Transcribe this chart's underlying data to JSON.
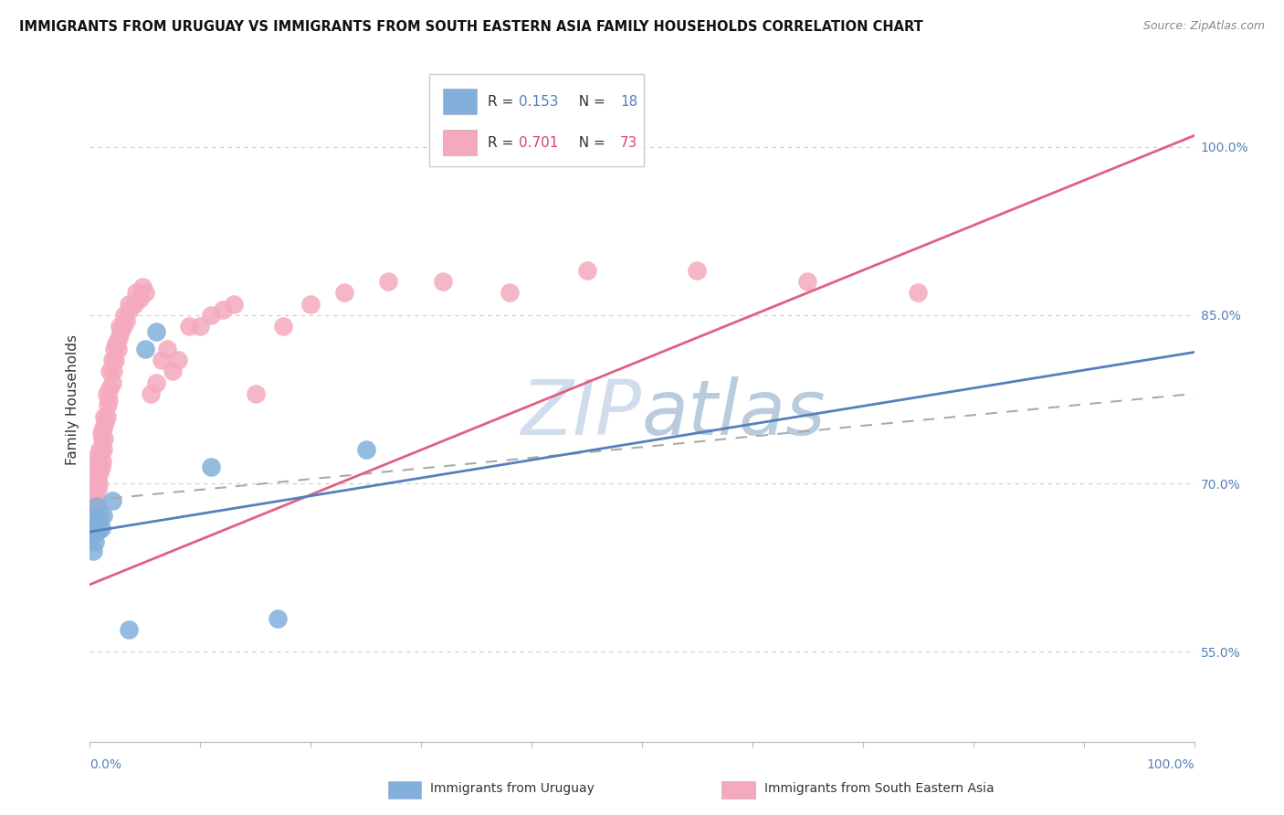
{
  "title": "IMMIGRANTS FROM URUGUAY VS IMMIGRANTS FROM SOUTH EASTERN ASIA FAMILY HOUSEHOLDS CORRELATION CHART",
  "source": "Source: ZipAtlas.com",
  "ylabel": "Family Households",
  "right_ytick_labels": [
    "55.0%",
    "70.0%",
    "85.0%",
    "100.0%"
  ],
  "right_ytick_values": [
    0.55,
    0.7,
    0.85,
    1.0
  ],
  "legend_blue_r": "0.153",
  "legend_blue_n": "18",
  "legend_pink_r": "0.701",
  "legend_pink_n": "73",
  "blue_scatter_color": "#82AFDB",
  "pink_scatter_color": "#F4AABC",
  "blue_line_color": "#5580BB",
  "pink_line_color": "#E06080",
  "dashed_line_color": "#AAAAAA",
  "grid_color": "#CCCCCC",
  "background_color": "#FFFFFF",
  "text_color": "#333333",
  "axis_color": "#5580BB",
  "watermark_color": "#D0DDED",
  "title_fontsize": 10.5,
  "source_fontsize": 9,
  "legend_fontsize": 11,
  "tick_fontsize": 10,
  "ylabel_fontsize": 11,
  "watermark_fontsize": 60,
  "xlim": [
    0.0,
    1.0
  ],
  "ylim": [
    0.47,
    1.08
  ],
  "blue_x": [
    0.003,
    0.004,
    0.004,
    0.005,
    0.005,
    0.006,
    0.007,
    0.008,
    0.009,
    0.01,
    0.012,
    0.02,
    0.035,
    0.05,
    0.11,
    0.17,
    0.25,
    0.06
  ],
  "blue_y": [
    0.64,
    0.655,
    0.67,
    0.648,
    0.662,
    0.68,
    0.658,
    0.667,
    0.671,
    0.66,
    0.672,
    0.685,
    0.57,
    0.82,
    0.715,
    0.58,
    0.73,
    0.835
  ],
  "pink_x": [
    0.003,
    0.004,
    0.004,
    0.005,
    0.005,
    0.006,
    0.006,
    0.006,
    0.007,
    0.007,
    0.007,
    0.008,
    0.008,
    0.009,
    0.009,
    0.01,
    0.01,
    0.01,
    0.011,
    0.011,
    0.012,
    0.012,
    0.013,
    0.013,
    0.014,
    0.015,
    0.015,
    0.016,
    0.017,
    0.018,
    0.018,
    0.02,
    0.02,
    0.021,
    0.022,
    0.023,
    0.024,
    0.025,
    0.026,
    0.027,
    0.028,
    0.03,
    0.031,
    0.033,
    0.035,
    0.036,
    0.04,
    0.042,
    0.045,
    0.048,
    0.05,
    0.055,
    0.06,
    0.065,
    0.07,
    0.075,
    0.08,
    0.09,
    0.1,
    0.11,
    0.12,
    0.13,
    0.15,
    0.175,
    0.2,
    0.23,
    0.27,
    0.32,
    0.38,
    0.45,
    0.55,
    0.65,
    0.75
  ],
  "pink_y": [
    0.66,
    0.68,
    0.66,
    0.69,
    0.67,
    0.685,
    0.7,
    0.715,
    0.695,
    0.71,
    0.725,
    0.7,
    0.72,
    0.71,
    0.73,
    0.715,
    0.73,
    0.745,
    0.72,
    0.74,
    0.73,
    0.75,
    0.74,
    0.76,
    0.755,
    0.76,
    0.78,
    0.77,
    0.775,
    0.785,
    0.8,
    0.79,
    0.81,
    0.8,
    0.82,
    0.81,
    0.825,
    0.82,
    0.83,
    0.84,
    0.835,
    0.84,
    0.85,
    0.845,
    0.86,
    0.855,
    0.86,
    0.87,
    0.865,
    0.875,
    0.87,
    0.78,
    0.79,
    0.81,
    0.82,
    0.8,
    0.81,
    0.84,
    0.84,
    0.85,
    0.855,
    0.86,
    0.78,
    0.84,
    0.86,
    0.87,
    0.88,
    0.88,
    0.87,
    0.89,
    0.89,
    0.88,
    0.87
  ]
}
